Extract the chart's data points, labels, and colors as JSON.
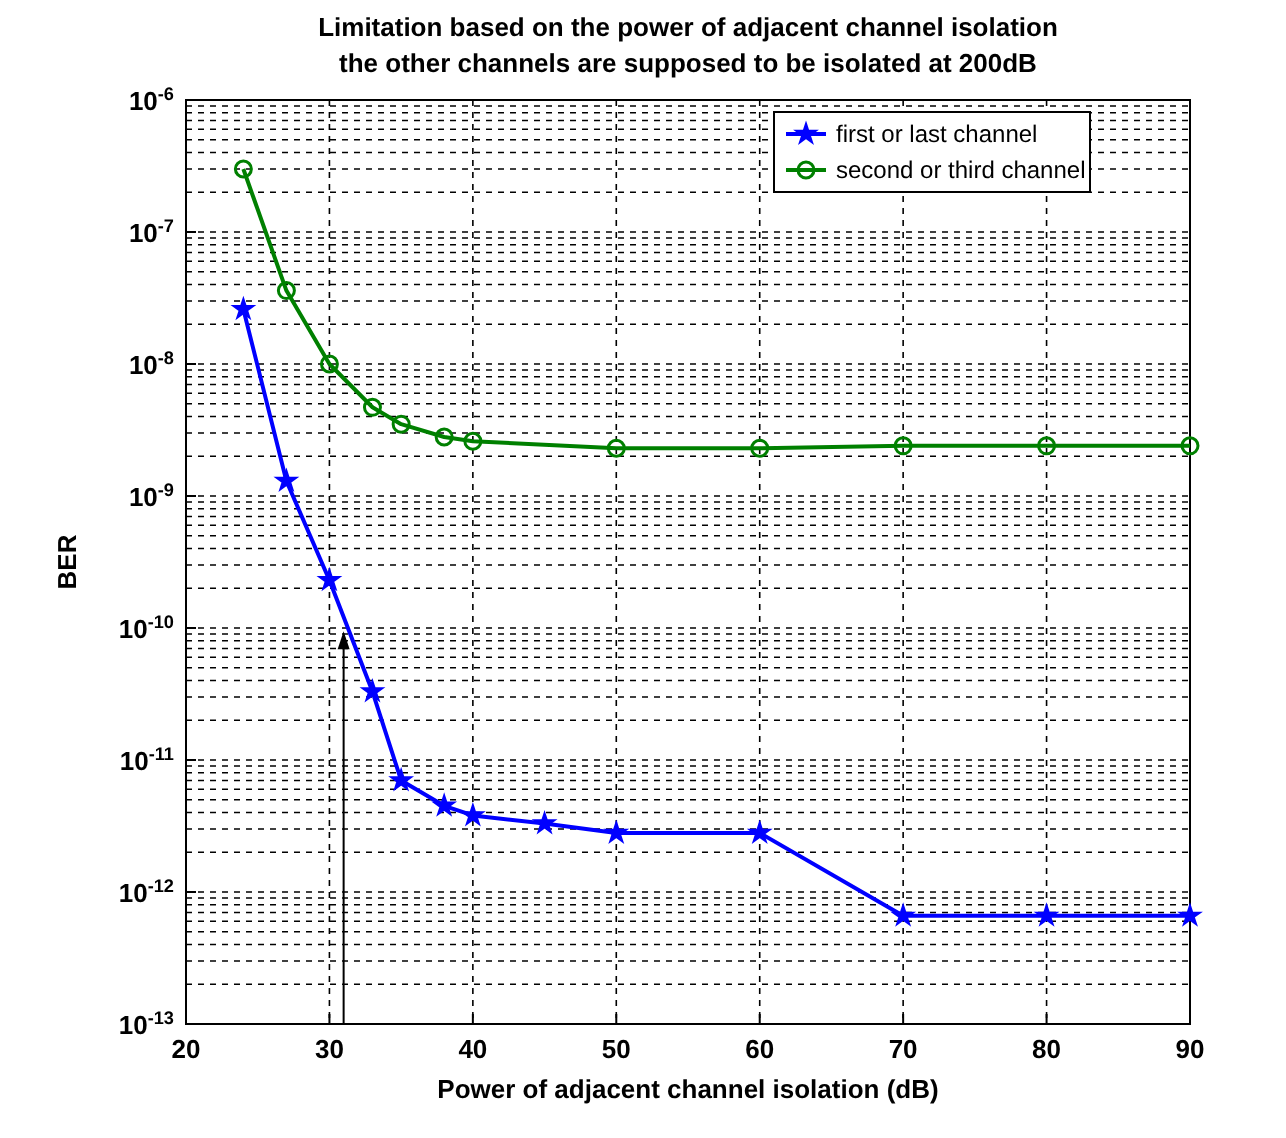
{
  "chart_data": {
    "type": "line",
    "title": "Limitation based on the power of adjacent channel isolation",
    "subtitle": "the other channels are supposed to be isolated at 200dB",
    "xlabel": "Power of adjacent channel isolation (dB)",
    "ylabel": "BER",
    "log": "y",
    "grid": true,
    "legend": "top right",
    "xlim": [
      20,
      90
    ],
    "xticks": [
      20,
      30,
      40,
      50,
      60,
      70,
      80,
      90
    ],
    "ylim": [
      1e-13,
      1e-06
    ],
    "yticks": [
      {
        "value": 1e-13,
        "label": "10$^{-13}$"
      },
      {
        "value": 1e-12,
        "label": "10$^{-12}$"
      },
      {
        "value": 1e-11,
        "label": "10$^{-11}$"
      },
      {
        "value": 1e-10,
        "label": "10$^{-10}$"
      },
      {
        "value": 1e-09,
        "label": "10$^{-9}$"
      },
      {
        "value": 1e-08,
        "label": "10$^{-8}$"
      },
      {
        "value": 1e-07,
        "label": "10$^{-7}$"
      },
      {
        "value": 1e-06,
        "label": "10$^{-6}$"
      }
    ],
    "series": [
      {
        "name": "first or last channel",
        "color": "#0000ff",
        "marker": "star",
        "x": [
          24,
          27,
          30,
          33,
          35,
          38,
          40,
          45,
          50,
          60,
          70,
          80,
          90
        ],
        "values": [
          2.6e-08,
          1.3e-09,
          2.3e-10,
          3.3e-11,
          7e-12,
          4.5e-12,
          3.8e-12,
          3.3e-12,
          2.8e-12,
          2.8e-12,
          6.6e-13,
          6.6e-13,
          6.6e-13
        ]
      },
      {
        "name": "second or third channel",
        "color": "#008000",
        "marker": "circle",
        "x": [
          24,
          27,
          30,
          33,
          35,
          38,
          40,
          50,
          60,
          70,
          80,
          90
        ],
        "values": [
          3e-07,
          3.6e-08,
          1e-08,
          4.7e-09,
          3.5e-09,
          2.8e-09,
          2.6e-09,
          2.3e-09,
          2.3e-09,
          2.4e-09,
          2.4e-09,
          2.4e-09
        ]
      }
    ]
  }
}
